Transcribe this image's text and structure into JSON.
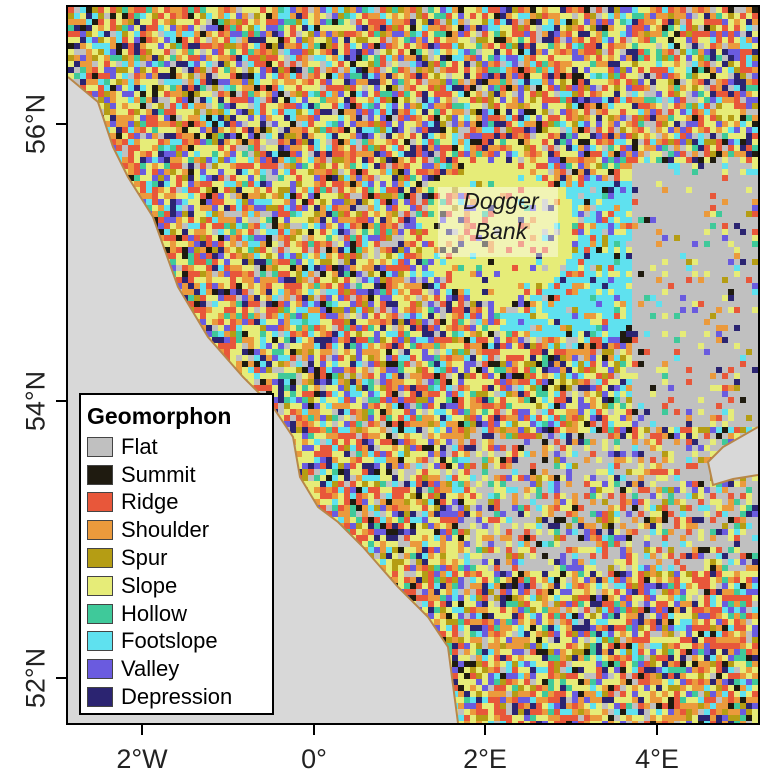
{
  "map": {
    "place_label_line1": "Dogger",
    "place_label_line2": "Bank",
    "land_color": "#d8d8d8",
    "coast_color": "#c79a56"
  },
  "axes": {
    "x_ticks": [
      "2°W",
      "0°",
      "2°E",
      "4°E"
    ],
    "y_ticks": [
      "56°N",
      "54°N",
      "52°N"
    ]
  },
  "legend": {
    "title": "Geomorphon",
    "items": [
      {
        "label": "Flat",
        "color": "#c0c0c0"
      },
      {
        "label": "Summit",
        "color": "#1f1b10"
      },
      {
        "label": "Ridge",
        "color": "#e8573a"
      },
      {
        "label": "Shoulder",
        "color": "#eb9a3c"
      },
      {
        "label": "Spur",
        "color": "#b59d14"
      },
      {
        "label": "Slope",
        "color": "#e6ec78"
      },
      {
        "label": "Hollow",
        "color": "#3fc99a"
      },
      {
        "label": "Footslope",
        "color": "#5fe1ef"
      },
      {
        "label": "Valley",
        "color": "#6a5bdf"
      },
      {
        "label": "Depression",
        "color": "#2b2471"
      }
    ]
  }
}
